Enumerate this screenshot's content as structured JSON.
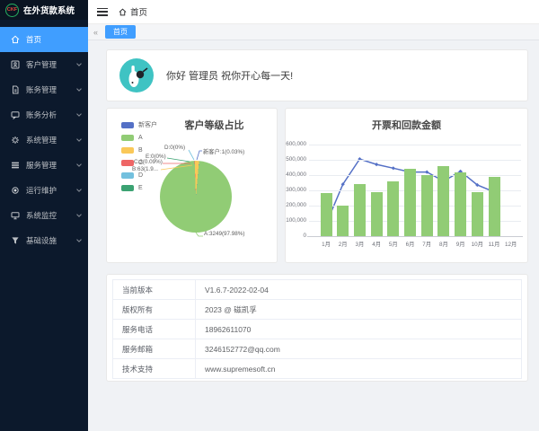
{
  "app": {
    "accent": "#409eff",
    "sidebar_bg": "#0c192c",
    "avatar_bg": "#3fc3c3"
  },
  "sidebar": {
    "logo_text": "CKF",
    "app_title": "在外货款系统",
    "items": [
      {
        "label": "首页",
        "active": true,
        "has_children": false
      },
      {
        "label": "客户管理",
        "active": false,
        "has_children": true
      },
      {
        "label": "账务管理",
        "active": false,
        "has_children": true
      },
      {
        "label": "账务分析",
        "active": false,
        "has_children": true
      },
      {
        "label": "系统管理",
        "active": false,
        "has_children": true
      },
      {
        "label": "服务管理",
        "active": false,
        "has_children": true
      },
      {
        "label": "运行维护",
        "active": false,
        "has_children": true
      },
      {
        "label": "系统监控",
        "active": false,
        "has_children": true
      },
      {
        "label": "基础设施",
        "active": false,
        "has_children": true
      }
    ]
  },
  "topbar": {
    "breadcrumb": "首页"
  },
  "tabbar": {
    "collapse_icon": "«",
    "tabs": [
      {
        "label": "首页",
        "active": true
      }
    ]
  },
  "greeting": {
    "text": "你好 管理员 祝你开心每一天!"
  },
  "chart_data": [
    {
      "type": "pie",
      "title": "客户等级占比",
      "legend_position": "left",
      "slices": [
        {
          "name": "新客户",
          "value": 1,
          "percent": 0.03,
          "label": "新客户:1(0.03%)",
          "color": "#5470c6"
        },
        {
          "name": "A",
          "value": 3249,
          "percent": 97.98,
          "label": "A:3249(97.98%)",
          "color": "#91cc75"
        },
        {
          "name": "B",
          "value": 63,
          "percent": 1.9,
          "label": "B:63(1.9...",
          "color": "#fac858"
        },
        {
          "name": "C",
          "value": 3,
          "percent": 0.09,
          "label": "C:3(0.09%)",
          "color": "#ee6666"
        },
        {
          "name": "D",
          "value": 0,
          "percent": 0,
          "label": "D:0(0%)",
          "color": "#73c0de"
        },
        {
          "name": "E",
          "value": 0,
          "percent": 0,
          "label": "E:0(0%)",
          "color": "#3ba272"
        }
      ]
    },
    {
      "type": "bar",
      "title": "开票和回款金额",
      "categories": [
        "1月",
        "2月",
        "3月",
        "4月",
        "5月",
        "6月",
        "7月",
        "8月",
        "9月",
        "10月",
        "11月",
        "12月"
      ],
      "series": [
        {
          "name": "bar-series",
          "type": "bar",
          "color": "#91cc75",
          "values": [
            280000,
            200000,
            340000,
            290000,
            360000,
            440000,
            400000,
            460000,
            420000,
            290000,
            390000,
            null
          ]
        },
        {
          "name": "line-series",
          "type": "line",
          "color": "#5470c6",
          "values": [
            80000,
            340000,
            505000,
            470000,
            445000,
            420000,
            420000,
            360000,
            425000,
            335000,
            290000,
            null
          ]
        }
      ],
      "ylim": [
        0,
        650000
      ],
      "y_ticks": [
        0,
        100000,
        200000,
        300000,
        400000,
        500000,
        600000
      ],
      "grid": true
    }
  ],
  "info_table": {
    "rows": [
      {
        "label": "当前版本",
        "value": "V1.6.7-2022-02-04"
      },
      {
        "label": "版权所有",
        "value": "2023 @ 磁凯孚"
      },
      {
        "label": "服务电话",
        "value": "18962611070"
      },
      {
        "label": "服务邮箱",
        "value": "3246152772@qq.com"
      },
      {
        "label": "技术支持",
        "value": "www.supremesoft.cn"
      }
    ]
  }
}
